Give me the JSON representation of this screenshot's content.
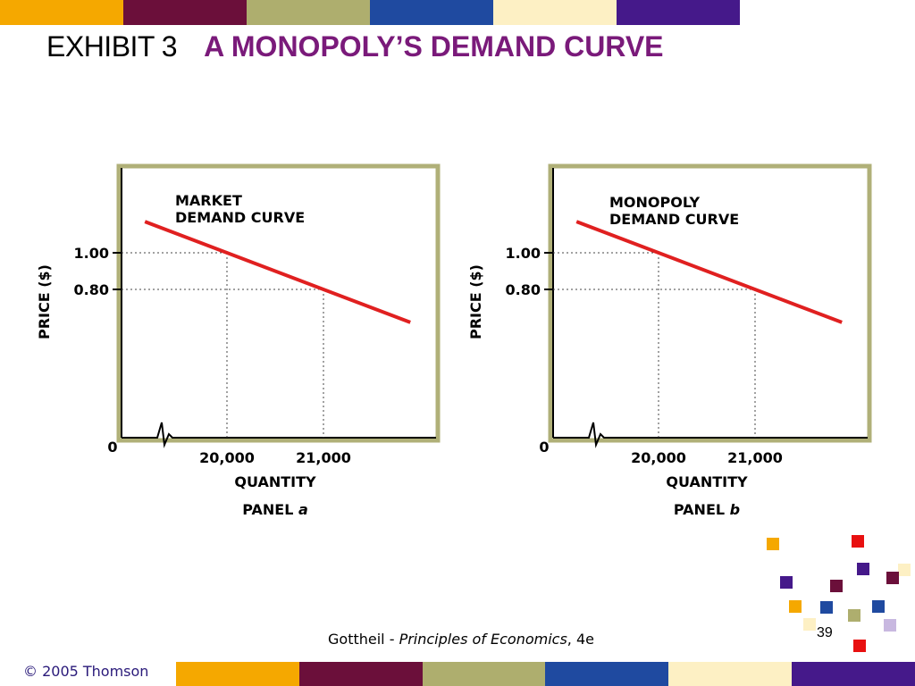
{
  "title": {
    "exhibit": "EXHIBIT 3",
    "subject": "A MONOPOLY’S DEMAND CURVE"
  },
  "stripe_colors": [
    "#f5a800",
    "#6b0f3a",
    "#aeae6e",
    "#1f4aa0",
    "#fdf0c4",
    "#45198a"
  ],
  "colors": {
    "frame": "#b0b078",
    "curve": "#e02020",
    "title_accent": "#7a1a7a"
  },
  "chart_data": [
    {
      "type": "line",
      "panel_label_text": "PANEL",
      "panel_label_letter": "a",
      "curve_label": [
        "MARKET",
        "DEMAND CURVE"
      ],
      "ylabel": "PRICE ($)",
      "xlabel": "QUANTITY",
      "yticks": [
        {
          "value": 1.0,
          "label": "1.00"
        },
        {
          "value": 0.8,
          "label": "0.80"
        }
      ],
      "xticks": [
        {
          "value": 20000,
          "label": "20,000"
        },
        {
          "value": 21000,
          "label": "21,000"
        }
      ],
      "origin_label": "0",
      "axis_break": true,
      "series": [
        {
          "x": [
            20000,
            21000
          ],
          "y": [
            1.0,
            0.8
          ]
        }
      ],
      "dotted_guides": true
    },
    {
      "type": "line",
      "panel_label_text": "PANEL",
      "panel_label_letter": "b",
      "curve_label": [
        "MONOPOLY",
        "DEMAND CURVE"
      ],
      "ylabel": "PRICE ($)",
      "xlabel": "QUANTITY",
      "yticks": [
        {
          "value": 1.0,
          "label": "1.00"
        },
        {
          "value": 0.8,
          "label": "0.80"
        }
      ],
      "xticks": [
        {
          "value": 20000,
          "label": "20,000"
        },
        {
          "value": 21000,
          "label": "21,000"
        }
      ],
      "origin_label": "0",
      "axis_break": true,
      "series": [
        {
          "x": [
            20000,
            21000
          ],
          "y": [
            1.0,
            0.8
          ]
        }
      ],
      "dotted_guides": true
    }
  ],
  "footer": {
    "author": "Gottheil - ",
    "book": "Principles of Economics",
    "edition": ", 4e",
    "page": "39",
    "copyright": "© 2005 Thomson"
  },
  "decor_colors": [
    "#f5a800",
    "#e81010",
    "#45198a",
    "#6b0f3a",
    "#1f4aa0",
    "#aeae6e",
    "#fdf0c4",
    "#c8b8e0"
  ]
}
